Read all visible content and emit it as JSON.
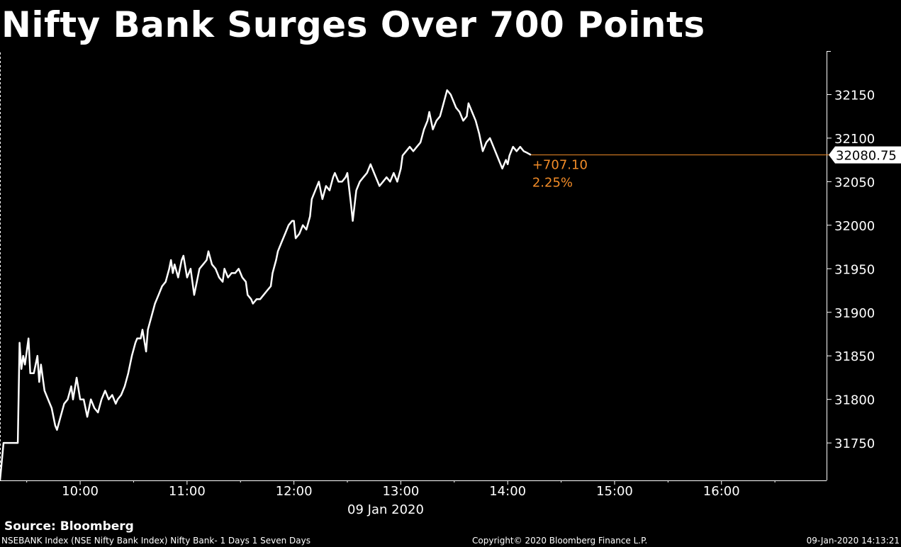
{
  "title": "Nifty Bank Surges Over 700 Points",
  "source": "Source: Bloomberg",
  "footer": {
    "description": "NSEBANK Index (NSE Nifty Bank Index) Nifty Bank- 1 Days 1 Seven Days",
    "copyright": "Copyright© 2020 Bloomberg Finance L.P.",
    "timestamp": "09-Jan-2020 14:13:21"
  },
  "colors": {
    "background": "#000000",
    "line": "#ffffff",
    "accent": "#f28c28",
    "axis": "#ffffff"
  },
  "chart_data": {
    "type": "line",
    "title": "Nifty Bank Surges Over 700 Points",
    "date_label": "09 Jan 2020",
    "xlabel": "",
    "ylabel": "",
    "x_ticks": [
      "10:00",
      "11:00",
      "12:00",
      "13:00",
      "14:00",
      "15:00",
      "16:00"
    ],
    "y_ticks": [
      31750,
      31800,
      31850,
      31900,
      31950,
      32000,
      32050,
      32100,
      32150
    ],
    "xlim": [
      "09:15",
      "16:59"
    ],
    "ylim": [
      31707,
      32200
    ],
    "grid": false,
    "y_axis_side": "right",
    "last_value_label": "32080.75",
    "change_label": "+707.10",
    "change_pct_label": "2.25%",
    "series": [
      {
        "values": [
          [
            "09:15",
            31707
          ],
          [
            "09:17",
            31750
          ],
          [
            "09:20",
            31750
          ],
          [
            "09:25",
            31750
          ],
          [
            "09:26",
            31865
          ],
          [
            "09:27",
            31835
          ],
          [
            "09:28",
            31850
          ],
          [
            "09:29",
            31840
          ],
          [
            "09:31",
            31870
          ],
          [
            "09:32",
            31830
          ],
          [
            "09:34",
            31830
          ],
          [
            "09:36",
            31850
          ],
          [
            "09:37",
            31820
          ],
          [
            "09:38",
            31840
          ],
          [
            "09:40",
            31810
          ],
          [
            "09:42",
            31800
          ],
          [
            "09:44",
            31790
          ],
          [
            "09:46",
            31770
          ],
          [
            "09:47",
            31765
          ],
          [
            "09:49",
            31780
          ],
          [
            "09:51",
            31795
          ],
          [
            "09:53",
            31800
          ],
          [
            "09:55",
            31815
          ],
          [
            "09:56",
            31800
          ],
          [
            "09:58",
            31825
          ],
          [
            "10:00",
            31800
          ],
          [
            "10:02",
            31800
          ],
          [
            "10:04",
            31780
          ],
          [
            "10:06",
            31800
          ],
          [
            "10:07",
            31795
          ],
          [
            "10:08",
            31790
          ],
          [
            "10:10",
            31785
          ],
          [
            "10:12",
            31800
          ],
          [
            "10:14",
            31810
          ],
          [
            "10:16",
            31800
          ],
          [
            "10:18",
            31805
          ],
          [
            "10:20",
            31795
          ],
          [
            "10:21",
            31800
          ],
          [
            "10:23",
            31805
          ],
          [
            "10:25",
            31815
          ],
          [
            "10:27",
            31830
          ],
          [
            "10:29",
            31850
          ],
          [
            "10:31",
            31865
          ],
          [
            "10:32",
            31870
          ],
          [
            "10:34",
            31870
          ],
          [
            "10:35",
            31880
          ],
          [
            "10:37",
            31855
          ],
          [
            "10:38",
            31880
          ],
          [
            "10:40",
            31895
          ],
          [
            "10:42",
            31910
          ],
          [
            "10:44",
            31920
          ],
          [
            "10:45",
            31925
          ],
          [
            "10:46",
            31930
          ],
          [
            "10:48",
            31935
          ],
          [
            "10:50",
            31950
          ],
          [
            "10:51",
            31960
          ],
          [
            "10:52",
            31945
          ],
          [
            "10:53",
            31955
          ],
          [
            "10:55",
            31940
          ],
          [
            "10:57",
            31960
          ],
          [
            "10:58",
            31965
          ],
          [
            "11:00",
            31940
          ],
          [
            "11:02",
            31950
          ],
          [
            "11:04",
            31920
          ],
          [
            "11:06",
            31940
          ],
          [
            "11:07",
            31950
          ],
          [
            "11:09",
            31955
          ],
          [
            "11:11",
            31960
          ],
          [
            "11:12",
            31970
          ],
          [
            "11:14",
            31955
          ],
          [
            "11:16",
            31950
          ],
          [
            "11:18",
            31940
          ],
          [
            "11:20",
            31935
          ],
          [
            "11:21",
            31950
          ],
          [
            "11:23",
            31940
          ],
          [
            "11:25",
            31945
          ],
          [
            "11:27",
            31945
          ],
          [
            "11:29",
            31950
          ],
          [
            "11:31",
            31940
          ],
          [
            "11:33",
            31935
          ],
          [
            "11:34",
            31920
          ],
          [
            "11:36",
            31915
          ],
          [
            "11:37",
            31910
          ],
          [
            "11:39",
            31915
          ],
          [
            "11:41",
            31915
          ],
          [
            "11:43",
            31920
          ],
          [
            "11:45",
            31925
          ],
          [
            "11:47",
            31930
          ],
          [
            "11:48",
            31945
          ],
          [
            "11:50",
            31960
          ],
          [
            "11:51",
            31970
          ],
          [
            "11:53",
            31980
          ],
          [
            "11:55",
            31990
          ],
          [
            "11:57",
            32000
          ],
          [
            "11:59",
            32005
          ],
          [
            "12:00",
            32005
          ],
          [
            "12:01",
            31985
          ],
          [
            "12:03",
            31990
          ],
          [
            "12:05",
            32000
          ],
          [
            "12:07",
            31995
          ],
          [
            "12:09",
            32010
          ],
          [
            "12:10",
            32030
          ],
          [
            "12:12",
            32040
          ],
          [
            "12:14",
            32050
          ],
          [
            "12:16",
            32030
          ],
          [
            "12:18",
            32045
          ],
          [
            "12:20",
            32040
          ],
          [
            "12:22",
            32055
          ],
          [
            "12:23",
            32060
          ],
          [
            "12:25",
            32050
          ],
          [
            "12:27",
            32050
          ],
          [
            "12:29",
            32055
          ],
          [
            "12:30",
            32060
          ],
          [
            "12:32",
            32025
          ],
          [
            "12:33",
            32005
          ],
          [
            "12:35",
            32040
          ],
          [
            "12:37",
            32050
          ],
          [
            "12:39",
            32055
          ],
          [
            "12:41",
            32060
          ],
          [
            "12:43",
            32070
          ],
          [
            "12:45",
            32060
          ],
          [
            "12:46",
            32055
          ],
          [
            "12:48",
            32045
          ],
          [
            "12:50",
            32050
          ],
          [
            "12:52",
            32055
          ],
          [
            "12:54",
            32050
          ],
          [
            "12:56",
            32060
          ],
          [
            "12:58",
            32050
          ],
          [
            "13:00",
            32065
          ],
          [
            "13:01",
            32080
          ],
          [
            "13:03",
            32085
          ],
          [
            "13:05",
            32090
          ],
          [
            "13:07",
            32085
          ],
          [
            "13:09",
            32090
          ],
          [
            "13:11",
            32095
          ],
          [
            "13:13",
            32110
          ],
          [
            "13:15",
            32120
          ],
          [
            "13:16",
            32130
          ],
          [
            "13:18",
            32110
          ],
          [
            "13:20",
            32120
          ],
          [
            "13:22",
            32125
          ],
          [
            "13:24",
            32140
          ],
          [
            "13:26",
            32155
          ],
          [
            "13:28",
            32150
          ],
          [
            "13:29",
            32145
          ],
          [
            "13:31",
            32135
          ],
          [
            "13:33",
            32130
          ],
          [
            "13:35",
            32120
          ],
          [
            "13:37",
            32125
          ],
          [
            "13:38",
            32140
          ],
          [
            "13:40",
            32130
          ],
          [
            "13:42",
            32120
          ],
          [
            "13:44",
            32105
          ],
          [
            "13:46",
            32085
          ],
          [
            "13:48",
            32095
          ],
          [
            "13:50",
            32100
          ],
          [
            "13:52",
            32090
          ],
          [
            "13:54",
            32080
          ],
          [
            "13:56",
            32070
          ],
          [
            "13:57",
            32065
          ],
          [
            "13:59",
            32075
          ],
          [
            "14:00",
            32070
          ],
          [
            "14:01",
            32080
          ],
          [
            "14:03",
            32090
          ],
          [
            "14:05",
            32085
          ],
          [
            "14:07",
            32090
          ],
          [
            "14:09",
            32085
          ],
          [
            "14:11",
            32083
          ],
          [
            "14:13",
            32080.75
          ]
        ]
      }
    ]
  }
}
